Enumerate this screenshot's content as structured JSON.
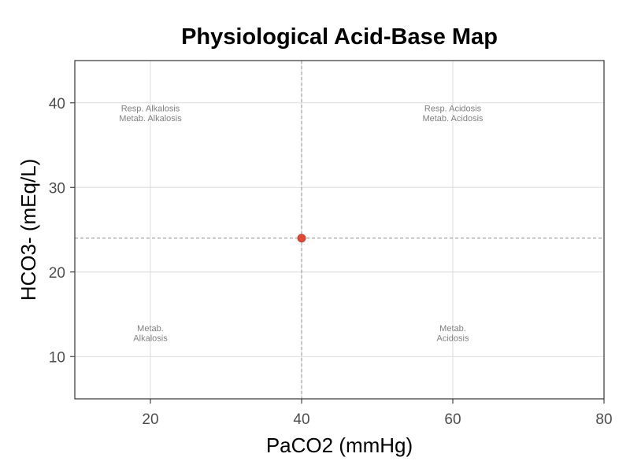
{
  "chart_data": {
    "type": "scatter",
    "title": "Physiological Acid-Base Map",
    "xlabel": "PaCO2 (mmHg)",
    "ylabel": "HCO3- (mEq/L)",
    "xlim": [
      10,
      80
    ],
    "ylim": [
      5,
      45
    ],
    "x_ticks": [
      20,
      40,
      60,
      80
    ],
    "y_ticks": [
      10,
      20,
      30,
      40
    ],
    "grid": true,
    "reference_lines": {
      "x": 40,
      "y": 24
    },
    "points": [
      {
        "x": 40,
        "y": 24,
        "color": "#e0483a"
      }
    ],
    "annotations": [
      {
        "x": 20,
        "y": 39,
        "lines": [
          "Resp. Alkalosis",
          "Metab. Alkalosis"
        ]
      },
      {
        "x": 60,
        "y": 39,
        "lines": [
          "Resp. Acidosis",
          "Metab. Acidosis"
        ]
      },
      {
        "x": 20,
        "y": 13,
        "lines": [
          "Metab.",
          "Alkalosis"
        ]
      },
      {
        "x": 60,
        "y": 13,
        "lines": [
          "Metab.",
          "Acidosis"
        ]
      }
    ]
  }
}
